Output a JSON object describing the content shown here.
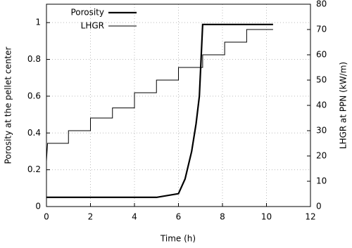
{
  "chart_data": {
    "type": "line",
    "xlabel": "Time (h)",
    "ylabel": "Porosity at the pellet center",
    "y2label": "LHGR at PPN (kW/m)",
    "xlim": [
      0,
      12
    ],
    "xticks": [
      0,
      2,
      4,
      6,
      8,
      10,
      12
    ],
    "ylim": [
      0,
      1.1
    ],
    "yticks": [
      0,
      0.2,
      0.4,
      0.6,
      0.8,
      1
    ],
    "y2lim": [
      0,
      80
    ],
    "y2ticks": [
      0,
      10,
      20,
      30,
      40,
      50,
      60,
      70,
      80
    ],
    "grid": true,
    "legend": "top-left",
    "series": [
      {
        "name": "Porosity",
        "color": "#000000",
        "width": 2.2,
        "axis": "y",
        "x": [
          0,
          5,
          6,
          6.3,
          6.6,
          6.8,
          6.95,
          7.1,
          10.3
        ],
        "values": [
          0.05,
          0.05,
          0.07,
          0.15,
          0.3,
          0.45,
          0.6,
          0.99,
          0.99
        ]
      },
      {
        "name": "LHGR",
        "color": "#000000",
        "width": 1,
        "axis": "y2",
        "x": [
          0,
          0.05,
          1,
          1,
          2,
          2,
          3,
          3,
          4,
          4,
          5,
          5,
          6,
          6,
          7.1,
          7.1,
          8.1,
          8.1,
          9.1,
          9.1,
          10.3
        ],
        "values": [
          18,
          25,
          25,
          30,
          30,
          35,
          35,
          39,
          39,
          45,
          45,
          50,
          50,
          55,
          55,
          60,
          60,
          65,
          65,
          70,
          70
        ]
      }
    ]
  }
}
